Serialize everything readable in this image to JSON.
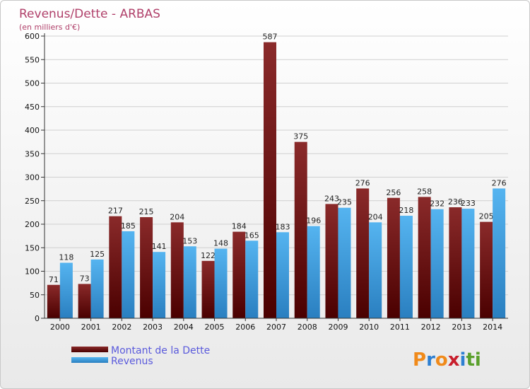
{
  "chart_data": {
    "type": "bar",
    "title": "Revenus/Dette - ARBAS",
    "subtitle": "(en milliers d'€)",
    "categories": [
      "2000",
      "2001",
      "2002",
      "2003",
      "2004",
      "2005",
      "2006",
      "2007",
      "2008",
      "2009",
      "2010",
      "2011",
      "2012",
      "2013",
      "2014"
    ],
    "series": [
      {
        "name": "Montant de la Dette",
        "values": [
          71,
          73,
          217,
          215,
          204,
          122,
          184,
          587,
          375,
          243,
          276,
          256,
          258,
          236,
          205
        ],
        "color": "#7a1010"
      },
      {
        "name": "Revenus",
        "values": [
          118,
          125,
          185,
          141,
          153,
          148,
          165,
          183,
          196,
          235,
          204,
          218,
          232,
          233,
          276
        ],
        "color": "#3fa0e6"
      }
    ],
    "ylim": [
      0,
      600
    ],
    "yticks": [
      0,
      50,
      100,
      150,
      200,
      250,
      300,
      350,
      400,
      450,
      500,
      550,
      600
    ],
    "grid": true,
    "legend": "bottom-left"
  },
  "logo": {
    "text": "Proxiti",
    "letters": [
      "P",
      "r",
      "o",
      "x",
      "i",
      "t",
      "i"
    ]
  }
}
